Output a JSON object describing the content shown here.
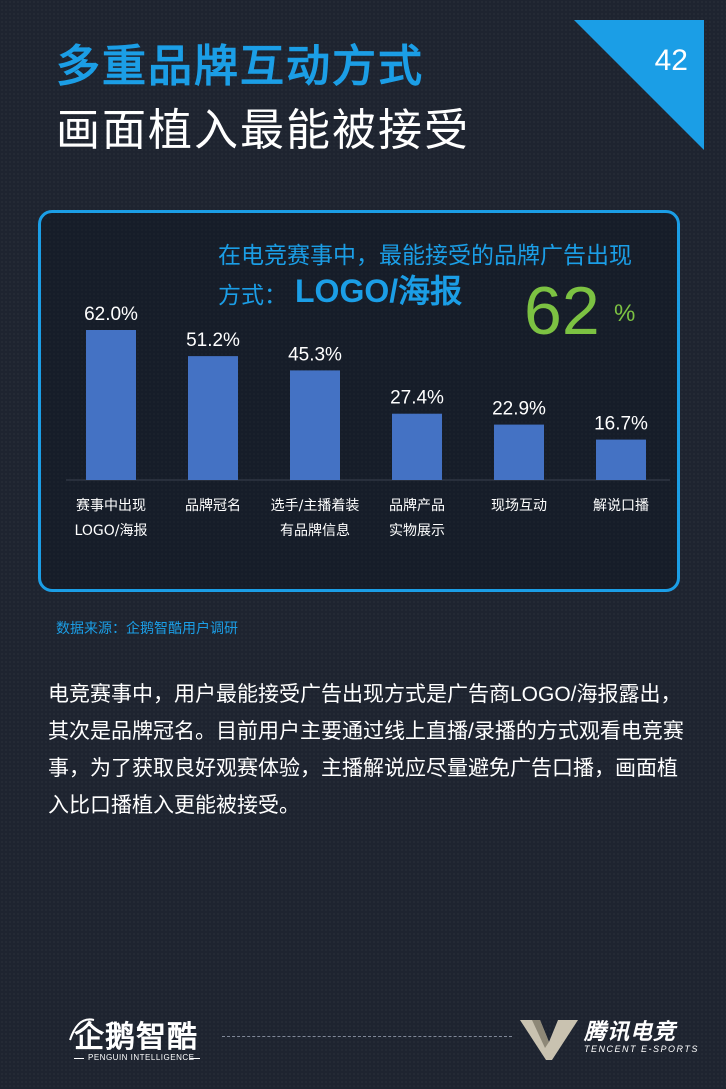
{
  "page_number": "42",
  "title_line1": "多重品牌互动方式",
  "title_line2": "画面植入最能被接受",
  "highlight": {
    "line1": "在电竞赛事中，最能接受的品牌广告出现",
    "line2_label": "方式：",
    "line2_strong": "LOGO/海报",
    "big_number": "62",
    "big_unit": "%"
  },
  "chart_data": {
    "type": "bar",
    "categories": [
      [
        "赛事中出现",
        "LOGO/海报"
      ],
      [
        "品牌冠名"
      ],
      [
        "选手/主播着装",
        "有品牌信息"
      ],
      [
        "品牌产品",
        "实物展示"
      ],
      [
        "现场互动"
      ],
      [
        "解说口播"
      ]
    ],
    "values": [
      62.0,
      51.2,
      45.3,
      27.4,
      22.9,
      16.7
    ],
    "value_labels": [
      "62.0%",
      "51.2%",
      "45.3%",
      "27.4%",
      "22.9%",
      "16.7%"
    ],
    "ylim": [
      0,
      62.0
    ],
    "bar_color": "#4472c4"
  },
  "source": "数据来源：企鹅智酷用户调研",
  "body_text": "电竞赛事中，用户最能接受广告出现方式是广告商LOGO/海报露出，其次是品牌冠名。目前用户主要通过线上直播/录播的方式观看电竞赛事，为了获取良好观赛体验，主播解说应尽量避免广告口播，画面植入比口播植入更能被接受。",
  "footer": {
    "left_logo_cn": "企鹅智酷",
    "left_logo_en": "PENGUIN INTELLIGENCE",
    "right_logo_cn": "腾讯电竞",
    "right_logo_en": "TENCENT E-SPORTS"
  },
  "colors": {
    "accent_blue": "#1b9ee6",
    "accent_green": "#7cc242",
    "background": "#1e2430"
  }
}
